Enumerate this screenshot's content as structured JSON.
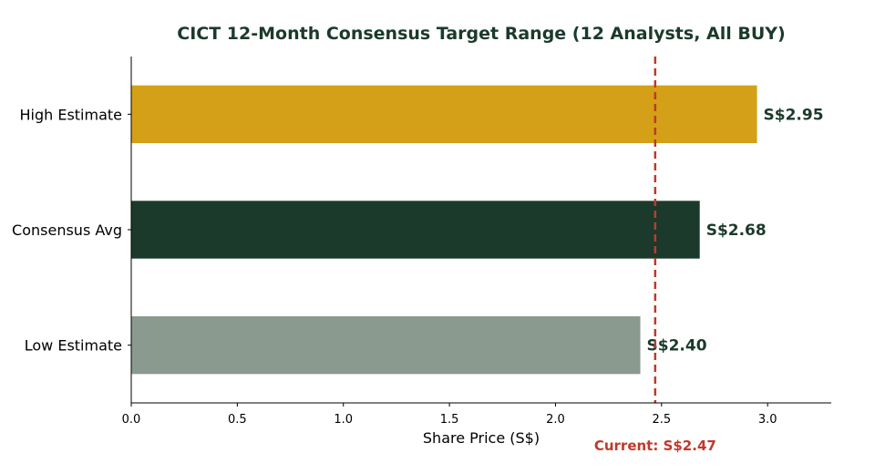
{
  "chart_data": {
    "type": "bar",
    "orientation": "horizontal",
    "title": "CICT 12-Month Consensus Target Range (12 Analysts, All BUY)",
    "xlabel": "Share Price (S$)",
    "ylabel": "",
    "xlim": [
      0,
      3.3
    ],
    "xticks": [
      0.0,
      0.5,
      1.0,
      1.5,
      2.0,
      2.5,
      3.0
    ],
    "xtick_labels": [
      "0.0",
      "0.5",
      "1.0",
      "1.5",
      "2.0",
      "2.5",
      "3.0"
    ],
    "categories": [
      "High Estimate",
      "Consensus Avg",
      "Low Estimate"
    ],
    "values": [
      2.95,
      2.68,
      2.4
    ],
    "data_labels": [
      "S$2.95",
      "S$2.68",
      "S$2.40"
    ],
    "bar_colors": [
      "#d4a017",
      "#1b3a2b",
      "#8a9a8e"
    ],
    "reference_line": {
      "value": 2.47,
      "label": "Current: S$2.47",
      "color": "#c0392b",
      "style": "dashed"
    },
    "grid": false,
    "legend": "none"
  }
}
